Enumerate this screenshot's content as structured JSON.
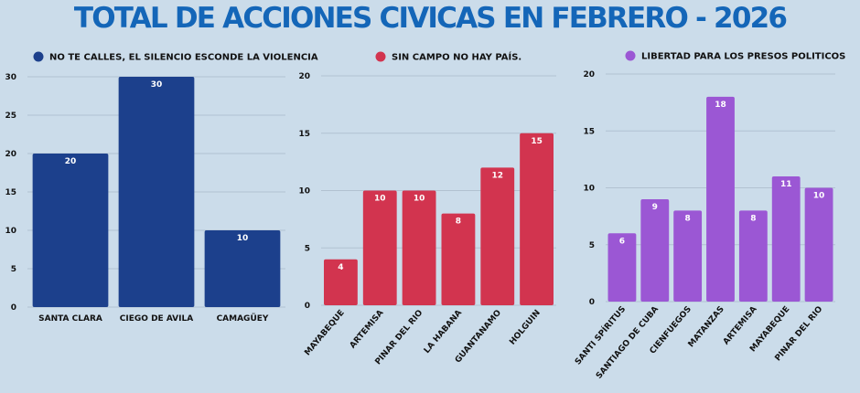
{
  "title": "TOTAL DE ACCIONES CIVICAS EN FEBRERO - 2026",
  "chart_data": [
    {
      "type": "bar",
      "legend": "NO TE CALLES, EL SILENCIO ESCONDE LA VIOLENCIA",
      "color": "#1c408c",
      "categories": [
        "SANTA CLARA",
        "CIEGO DE AVILA",
        "CAMAGÜEY"
      ],
      "values": [
        20,
        30,
        10
      ],
      "yticks": [
        0,
        5,
        10,
        15,
        20,
        25,
        30
      ],
      "ylim": [
        0,
        30
      ],
      "grid": true,
      "legend_position": "top-left",
      "rotated_labels": false
    },
    {
      "type": "bar",
      "legend": "SIN CAMPO NO HAY PAÍS.",
      "color": "#d2344f",
      "categories": [
        "MAYABEQUE",
        "ARTEMISA",
        "PINAR DEL RIO",
        "LA HABANA",
        "GUANTANAMO",
        "HOLGUIN"
      ],
      "values": [
        4,
        10,
        10,
        8,
        12,
        15
      ],
      "yticks": [
        0,
        5,
        10,
        15,
        20
      ],
      "ylim": [
        0,
        20
      ],
      "grid": true,
      "legend_position": "top-left",
      "rotated_labels": true
    },
    {
      "type": "bar",
      "legend": "LIBERTAD PARA LOS PRESOS POLITICOS",
      "color": "#9b57d4",
      "categories": [
        "SANTI SPÍRITUS",
        "SANTIAGO DE CUBA",
        "CIENFUEGOS",
        "MATANZAS",
        "ARTEMISA",
        "MAYABEQUE",
        "PINAR DEL RIO"
      ],
      "values": [
        6,
        9,
        8,
        18,
        8,
        11,
        10
      ],
      "yticks": [
        0,
        5,
        10,
        15,
        20
      ],
      "ylim": [
        0,
        20
      ],
      "grid": true,
      "legend_position": "top-left",
      "rotated_labels": true
    }
  ]
}
